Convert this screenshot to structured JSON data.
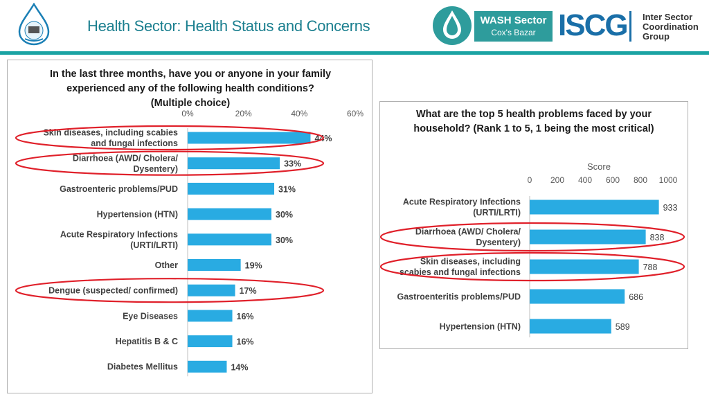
{
  "header": {
    "title": "Health Sector: Health Status and Concerns",
    "wash_title": "WASH Sector",
    "wash_subtitle": "Cox's Bazar",
    "iscg_mark": "ISCG",
    "iscg_lines": [
      "Inter Sector",
      "Coordination",
      "Group"
    ],
    "accent_color": "#1aa3a3",
    "title_color": "#1b7f8f"
  },
  "chart_data": [
    {
      "type": "bar",
      "orientation": "horizontal",
      "title": "In the last three months, have you or anyone in your family experienced any of the following health conditions? (Multiple choice)",
      "categories": [
        "Skin diseases, including scabies and fungal infections",
        "Diarrhoea (AWD/ Cholera/ Dysentery)",
        "Gastroenteric problems/PUD",
        "Hypertension (HTN)",
        "Acute Respiratory Infections (URTI/LRTI)",
        "Other",
        "Dengue (suspected/ confirmed)",
        "Eye Diseases",
        "Hepatitis B & C",
        "Diabetes Mellitus"
      ],
      "values": [
        44,
        33,
        31,
        30,
        30,
        19,
        17,
        16,
        16,
        14
      ],
      "data_labels": [
        "44%",
        "33%",
        "31%",
        "30%",
        "30%",
        "19%",
        "17%",
        "16%",
        "16%",
        "14%"
      ],
      "xlim": [
        0,
        60
      ],
      "ticks": [
        "0%",
        "20%",
        "40%",
        "60%"
      ],
      "highlighted": [
        0,
        1,
        6
      ],
      "bar_color": "#29abe2",
      "highlight_color": "#e0202a",
      "grid": false
    },
    {
      "type": "bar",
      "orientation": "horizontal",
      "title": "What are the top 5 health problems faced by your household? (Rank 1 to 5, 1 being the most critical)",
      "xlabel": "Score",
      "categories": [
        "Acute Respiratory Infections (URTI/LRTI)",
        "Diarrhoea (AWD/ Cholera/ Dysentery)",
        "Skin diseases, including scabies and fungal infections",
        "Gastroenteritis problems/PUD",
        "Hypertension (HTN)"
      ],
      "values": [
        933,
        838,
        788,
        686,
        589
      ],
      "data_labels": [
        "933",
        "838",
        "788",
        "686",
        "589"
      ],
      "xlim": [
        0,
        1000
      ],
      "ticks": [
        "0",
        "200",
        "400",
        "600",
        "800",
        "1000"
      ],
      "highlighted": [
        1,
        2
      ],
      "bar_color": "#29abe2",
      "highlight_color": "#e0202a",
      "grid": false
    }
  ]
}
